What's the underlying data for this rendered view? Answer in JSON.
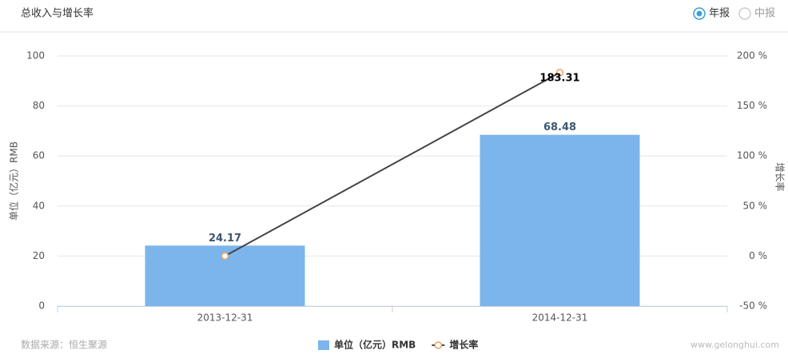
{
  "header": {
    "title": "总收入与增长率",
    "options": [
      {
        "label": "年报",
        "selected": true
      },
      {
        "label": "中报",
        "selected": false
      }
    ]
  },
  "chart_data": {
    "type": "bar",
    "categories": [
      "2013-12-31",
      "2014-12-31"
    ],
    "ylabel": "单位（亿元）RMB",
    "y2label": "增长率",
    "ylim": [
      0,
      100
    ],
    "yticks": [
      0,
      20,
      40,
      60,
      80,
      100
    ],
    "y2lim": [
      -50,
      200
    ],
    "y2ticks": [
      {
        "value": -50,
        "label": "-50 %"
      },
      {
        "value": 0,
        "label": "0 %"
      },
      {
        "value": 50,
        "label": "50 %"
      },
      {
        "value": 100,
        "label": "100 %"
      },
      {
        "value": 150,
        "label": "150 %"
      },
      {
        "value": 200,
        "label": "200 %"
      }
    ],
    "grid": true,
    "series": [
      {
        "name": "单位（亿元）RMB",
        "type": "bar",
        "color": "#7cb5ec",
        "values": [
          24.17,
          68.48
        ]
      },
      {
        "name": "增长率",
        "type": "line",
        "axis": "y2",
        "color": "#434348",
        "values": [
          0,
          183.31
        ],
        "value_labels": [
          null,
          "183.31"
        ]
      }
    ]
  },
  "footer": {
    "source": "数据来源：恒生聚源",
    "watermark": "www.gelonghui.com"
  }
}
